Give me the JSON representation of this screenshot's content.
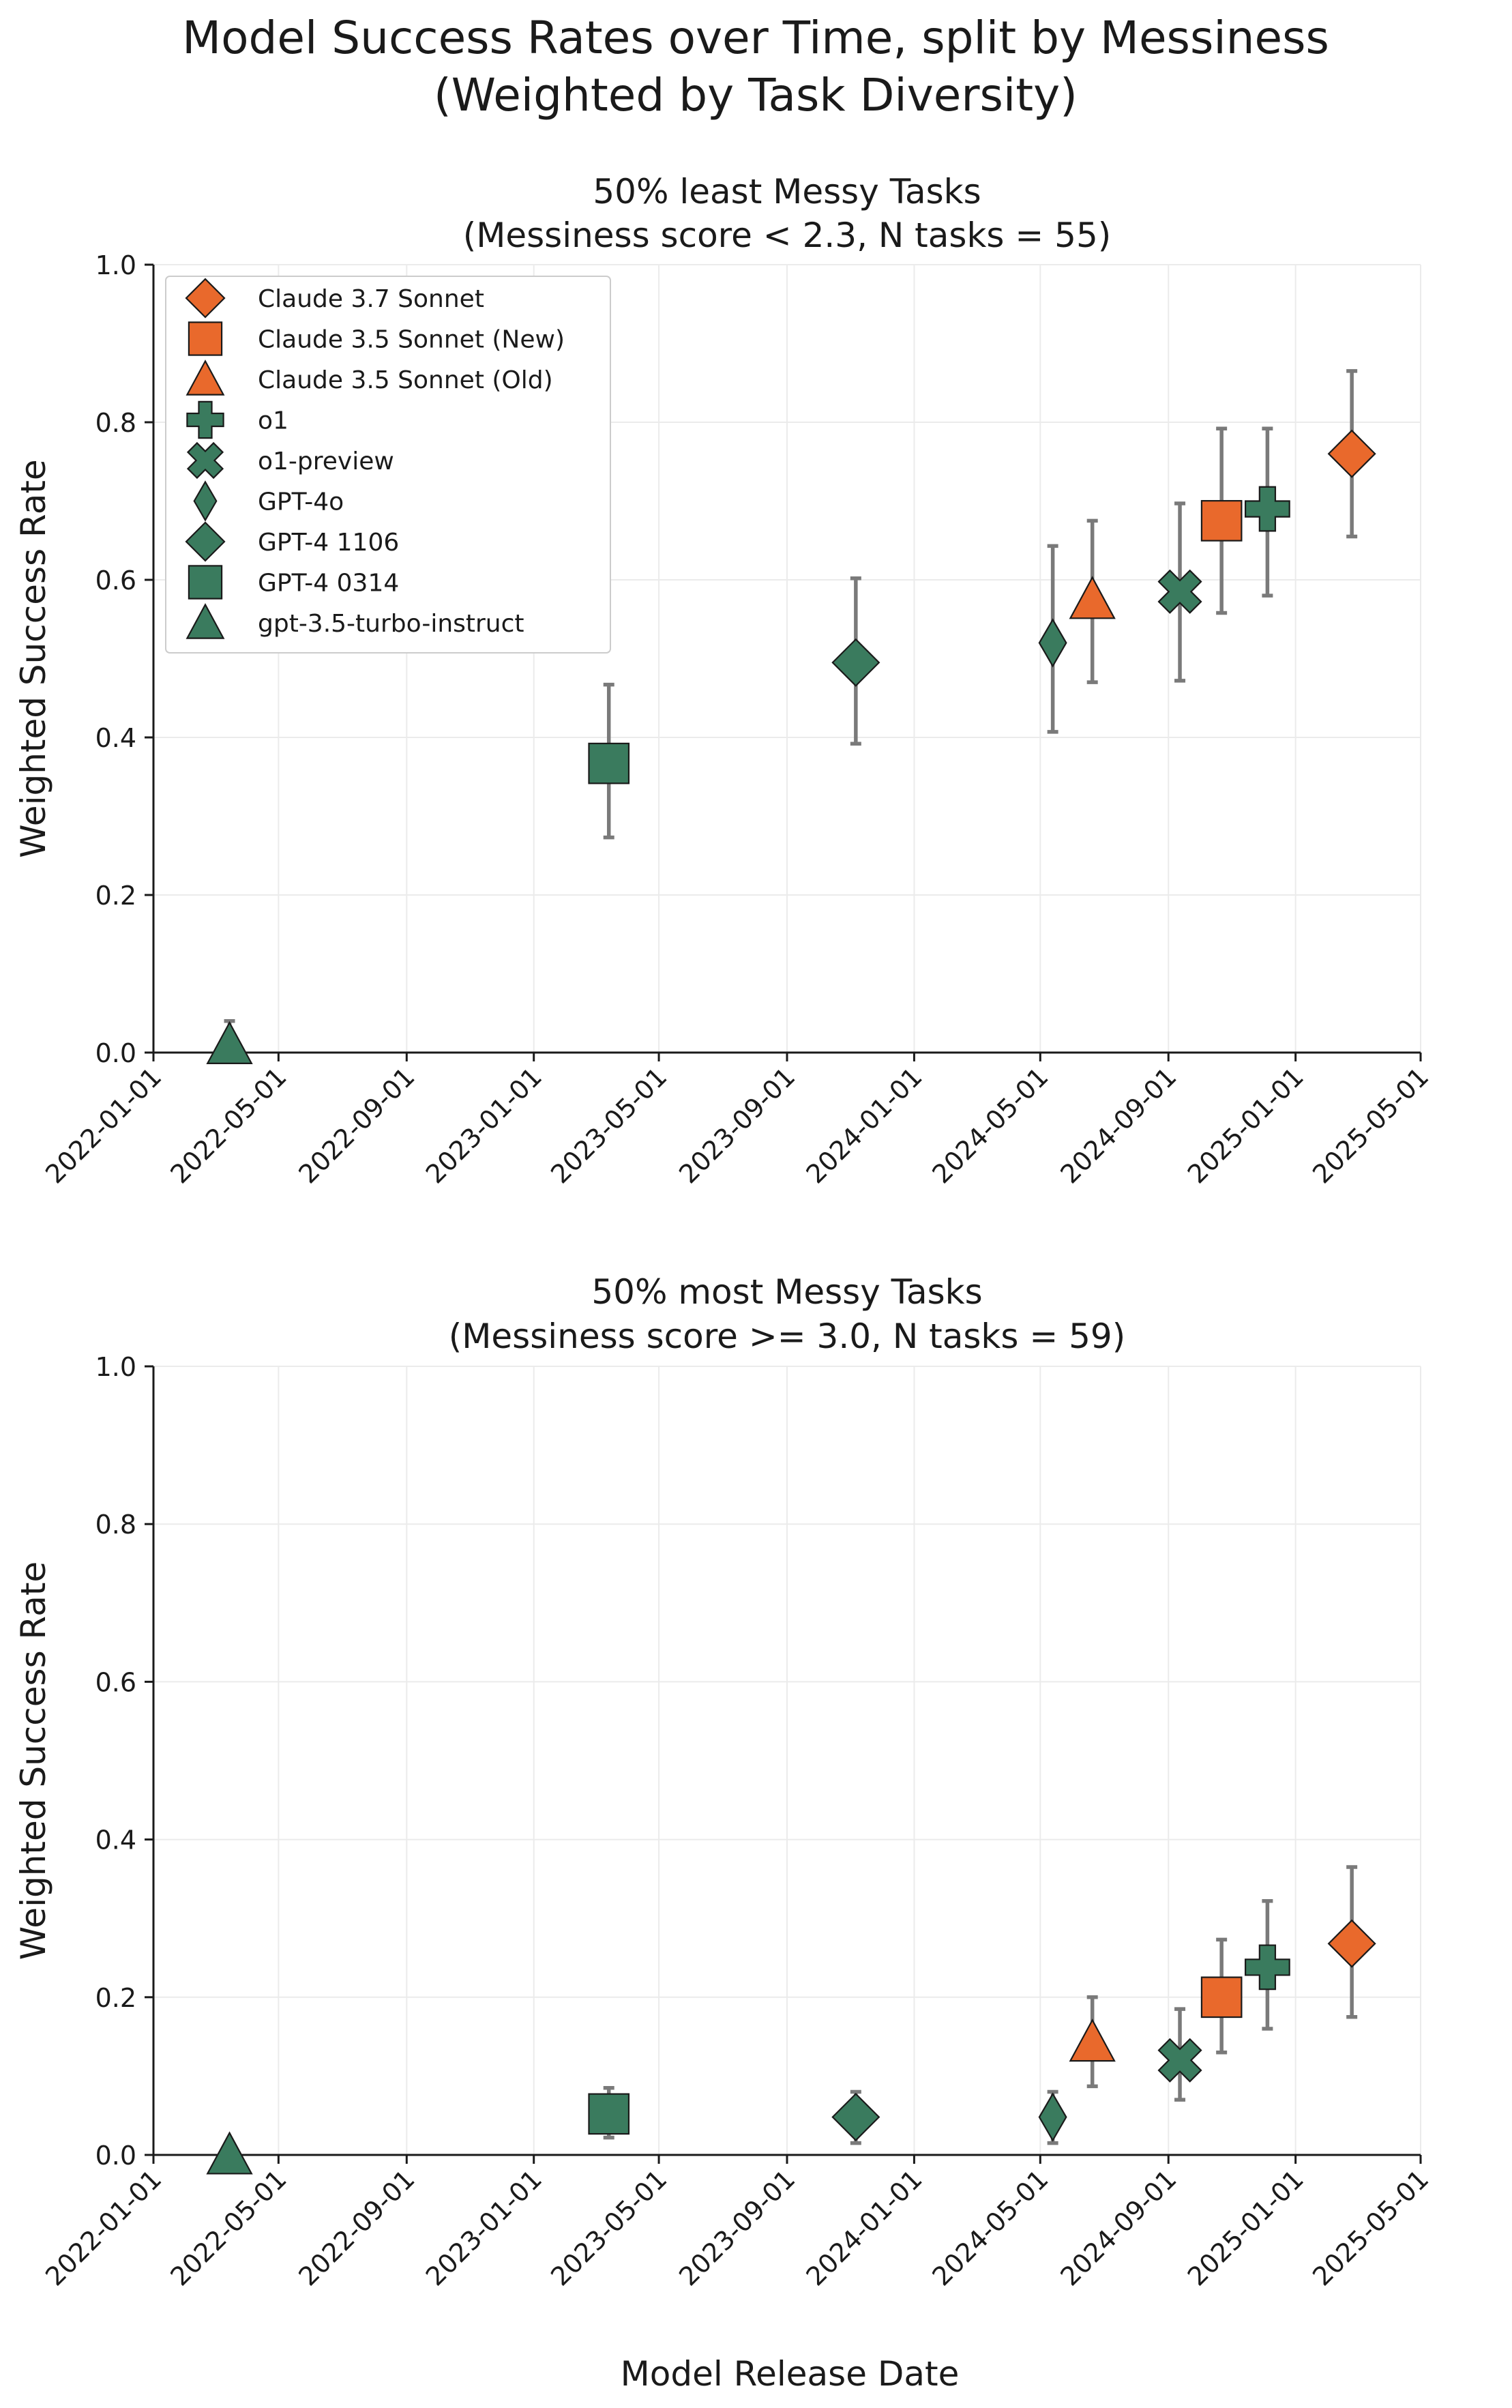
{
  "title_line1": "Model Success Rates over Time, split by Messiness",
  "title_line2": "(Weighted by Task Diversity)",
  "xlabel": "Model Release Date",
  "colors": {
    "orange": "#E9692C",
    "green": "#3A7B5E",
    "error": "#7A7A7A"
  },
  "chart_data": [
    {
      "type": "scatter",
      "title_line1": "50% least Messy Tasks",
      "title_line2": "(Messiness score < 2.3, N tasks = 55)",
      "ylabel": "Weighted Success Rate",
      "ylim": [
        0,
        1
      ],
      "yticks": [
        "0.0",
        "0.2",
        "0.4",
        "0.6",
        "0.8",
        "1.0"
      ],
      "xlim": [
        "2022-01-01",
        "2025-05-01"
      ],
      "xticks": [
        "2022-01-01",
        "2022-05-01",
        "2022-09-01",
        "2023-01-01",
        "2023-05-01",
        "2023-09-01",
        "2024-01-01",
        "2024-05-01",
        "2024-09-01",
        "2025-01-01",
        "2025-05-01"
      ],
      "legend_position": "upper-left",
      "series": [
        {
          "name": "Claude 3.7 Sonnet",
          "marker": "diamond",
          "color": "#E9692C",
          "date": "2025-02-24",
          "value": 0.76,
          "err_low": 0.655,
          "err_high": 0.865
        },
        {
          "name": "Claude 3.5 Sonnet (New)",
          "marker": "square",
          "color": "#E9692C",
          "date": "2024-10-22",
          "value": 0.675,
          "err_low": 0.558,
          "err_high": 0.792
        },
        {
          "name": "Claude 3.5 Sonnet (Old)",
          "marker": "triangle",
          "color": "#E9692C",
          "date": "2024-06-20",
          "value": 0.575,
          "err_low": 0.47,
          "err_high": 0.675
        },
        {
          "name": "o1",
          "marker": "plus",
          "color": "#3A7B5E",
          "date": "2024-12-05",
          "value": 0.69,
          "err_low": 0.58,
          "err_high": 0.792
        },
        {
          "name": "o1-preview",
          "marker": "x",
          "color": "#3A7B5E",
          "date": "2024-09-12",
          "value": 0.585,
          "err_low": 0.472,
          "err_high": 0.697
        },
        {
          "name": "GPT-4o",
          "marker": "thin-diamond",
          "color": "#3A7B5E",
          "date": "2024-05-13",
          "value": 0.52,
          "err_low": 0.407,
          "err_high": 0.643
        },
        {
          "name": "GPT-4 1106",
          "marker": "diamond",
          "color": "#3A7B5E",
          "date": "2023-11-06",
          "value": 0.495,
          "err_low": 0.392,
          "err_high": 0.602
        },
        {
          "name": "GPT-4 0314",
          "marker": "square",
          "color": "#3A7B5E",
          "date": "2023-03-14",
          "value": 0.367,
          "err_low": 0.273,
          "err_high": 0.467
        },
        {
          "name": "gpt-3.5-turbo-instruct",
          "marker": "triangle",
          "color": "#3A7B5E",
          "date": "2022-03-15",
          "value": 0.01,
          "err_low": 0.0,
          "err_high": 0.04
        }
      ]
    },
    {
      "type": "scatter",
      "title_line1": "50% most Messy Tasks",
      "title_line2": "(Messiness score >= 3.0, N tasks = 59)",
      "ylabel": "Weighted Success Rate",
      "ylim": [
        0,
        1
      ],
      "yticks": [
        "0.0",
        "0.2",
        "0.4",
        "0.6",
        "0.8",
        "1.0"
      ],
      "xlim": [
        "2022-01-01",
        "2025-05-01"
      ],
      "xticks": [
        "2022-01-01",
        "2022-05-01",
        "2022-09-01",
        "2023-01-01",
        "2023-05-01",
        "2023-09-01",
        "2024-01-01",
        "2024-05-01",
        "2024-09-01",
        "2025-01-01",
        "2025-05-01"
      ],
      "series": [
        {
          "name": "Claude 3.7 Sonnet",
          "marker": "diamond",
          "color": "#E9692C",
          "date": "2025-02-24",
          "value": 0.268,
          "err_low": 0.175,
          "err_high": 0.365
        },
        {
          "name": "Claude 3.5 Sonnet (New)",
          "marker": "square",
          "color": "#E9692C",
          "date": "2024-10-22",
          "value": 0.2,
          "err_low": 0.13,
          "err_high": 0.273
        },
        {
          "name": "Claude 3.5 Sonnet (Old)",
          "marker": "triangle",
          "color": "#E9692C",
          "date": "2024-06-20",
          "value": 0.143,
          "err_low": 0.087,
          "err_high": 0.2
        },
        {
          "name": "o1",
          "marker": "plus",
          "color": "#3A7B5E",
          "date": "2024-12-05",
          "value": 0.238,
          "err_low": 0.16,
          "err_high": 0.322
        },
        {
          "name": "o1-preview",
          "marker": "x",
          "color": "#3A7B5E",
          "date": "2024-09-12",
          "value": 0.12,
          "err_low": 0.07,
          "err_high": 0.185
        },
        {
          "name": "GPT-4o",
          "marker": "thin-diamond",
          "color": "#3A7B5E",
          "date": "2024-05-13",
          "value": 0.048,
          "err_low": 0.015,
          "err_high": 0.08
        },
        {
          "name": "GPT-4 1106",
          "marker": "diamond",
          "color": "#3A7B5E",
          "date": "2023-11-06",
          "value": 0.048,
          "err_low": 0.015,
          "err_high": 0.08
        },
        {
          "name": "GPT-4 0314",
          "marker": "square",
          "color": "#3A7B5E",
          "date": "2023-03-14",
          "value": 0.052,
          "err_low": 0.022,
          "err_high": 0.085
        },
        {
          "name": "gpt-3.5-turbo-instruct",
          "marker": "triangle",
          "color": "#3A7B5E",
          "date": "2022-03-15",
          "value": 0.0,
          "err_low": 0.0,
          "err_high": 0.0
        }
      ]
    }
  ]
}
